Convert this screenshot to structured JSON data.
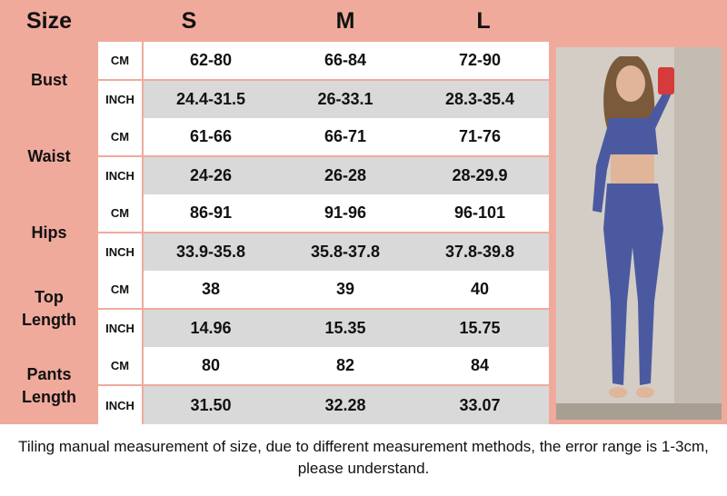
{
  "header": {
    "size": "Size",
    "s": "S",
    "m": "M",
    "l": "L"
  },
  "groups": [
    {
      "label_lines": [
        "Bust"
      ],
      "rows": [
        {
          "unit": "CM",
          "values": [
            "62-80",
            "66-84",
            "72-90"
          ]
        },
        {
          "unit": "INCH",
          "values": [
            "24.4-31.5",
            "26-33.1",
            "28.3-35.4"
          ]
        }
      ]
    },
    {
      "label_lines": [
        "Waist"
      ],
      "rows": [
        {
          "unit": "CM",
          "values": [
            "61-66",
            "66-71",
            "71-76"
          ]
        },
        {
          "unit": "INCH",
          "values": [
            "24-26",
            "26-28",
            "28-29.9"
          ]
        }
      ]
    },
    {
      "label_lines": [
        "Hips"
      ],
      "rows": [
        {
          "unit": "CM",
          "values": [
            "86-91",
            "91-96",
            "96-101"
          ]
        },
        {
          "unit": "INCH",
          "values": [
            "33.9-35.8",
            "35.8-37.8",
            "37.8-39.8"
          ]
        }
      ]
    },
    {
      "label_lines": [
        "Top",
        "Length"
      ],
      "rows": [
        {
          "unit": "CM",
          "values": [
            "38",
            "39",
            "40"
          ]
        },
        {
          "unit": "INCH",
          "values": [
            "14.96",
            "15.35",
            "15.75"
          ]
        }
      ]
    },
    {
      "label_lines": [
        "Pants",
        "Length"
      ],
      "rows": [
        {
          "unit": "CM",
          "values": [
            "80",
            "82",
            "84"
          ]
        },
        {
          "unit": "INCH",
          "values": [
            "31.50",
            "32.28",
            "33.07"
          ]
        }
      ]
    }
  ],
  "note": "Tiling manual measurement of size, due to different measurement methods, the error range is 1-3cm, please understand.",
  "colors": {
    "background": "#f0aa9c",
    "inch_row": "#d9d9d9",
    "outfit": "#4b5aa0"
  }
}
